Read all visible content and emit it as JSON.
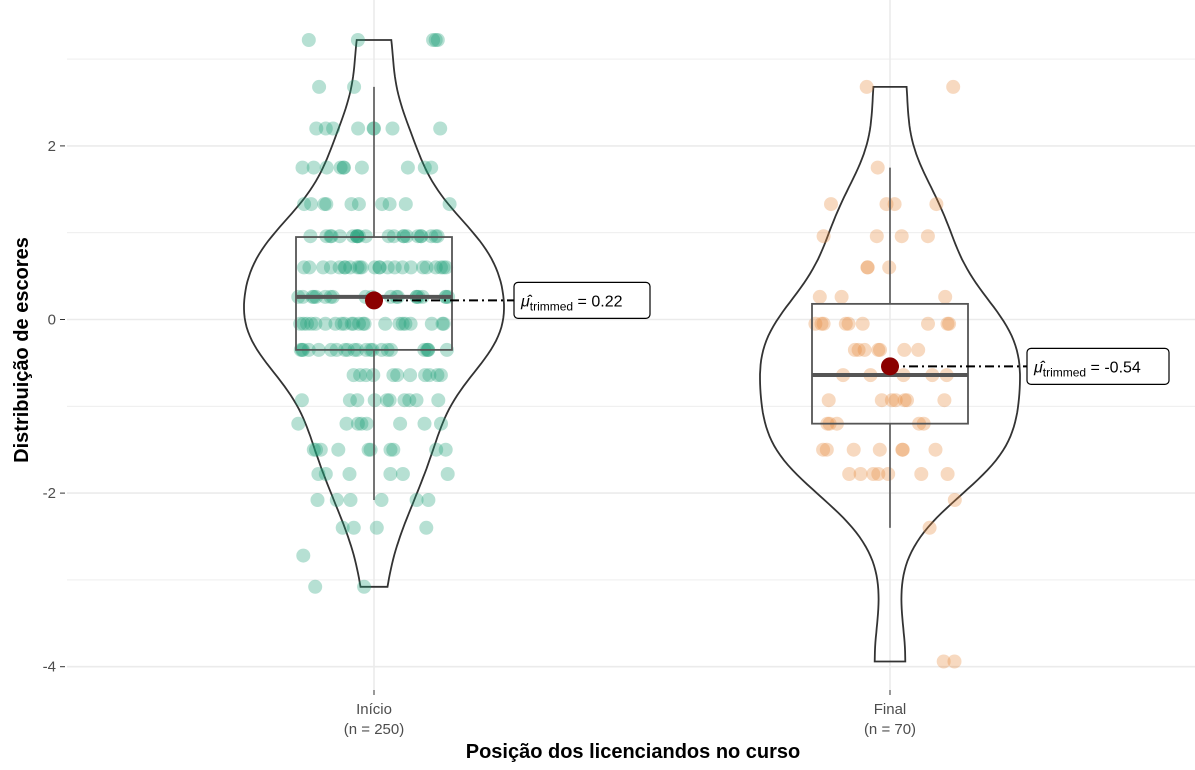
{
  "chart_data": {
    "type": "violin",
    "xlabel": "Posição dos licenciandos no curso",
    "ylabel": "Distribuição de escores",
    "ylim": [
      -4.35,
      3.35
    ],
    "yticks": [
      -4,
      -2,
      0,
      2
    ],
    "yticklabels": [
      "-4",
      "-2",
      "0",
      "2"
    ],
    "grid": true,
    "legend": "none",
    "colors": {
      "inicio": "#1b9e77",
      "final": "#e6893a",
      "mean_point": "#8b0000",
      "outline": "#333333"
    },
    "groups": [
      {
        "key": "inicio",
        "label": "Início",
        "n_label": "(n = 250)",
        "box": {
          "q1": -0.35,
          "median": 0.26,
          "q3": 0.95,
          "whisker_low": -2.08,
          "whisker_high": 2.68
        },
        "trimmed_mean": 0.22,
        "annotation": {
          "symbol": "μ̂",
          "subscript": "trimmed",
          "text": "= 0.22"
        },
        "violin_range": [
          -3.08,
          3.22
        ],
        "points_y": [
          3.22,
          3.22,
          3.22,
          3.22,
          3.22,
          2.68,
          2.68,
          2.2,
          2.2,
          2.2,
          2.2,
          2.2,
          2.2,
          2.2,
          2.2,
          1.75,
          1.75,
          1.75,
          1.75,
          1.75,
          1.75,
          1.75,
          1.75,
          1.75,
          1.75,
          1.33,
          1.33,
          1.33,
          1.33,
          1.33,
          1.33,
          1.33,
          1.33,
          1.33,
          1.33,
          0.96,
          0.96,
          0.96,
          0.96,
          0.96,
          0.96,
          0.96,
          0.96,
          0.96,
          0.96,
          0.96,
          0.96,
          0.96,
          0.96,
          0.96,
          0.96,
          0.96,
          0.96,
          0.96,
          0.96,
          0.96,
          0.96,
          0.6,
          0.6,
          0.6,
          0.6,
          0.6,
          0.6,
          0.6,
          0.6,
          0.6,
          0.6,
          0.6,
          0.6,
          0.6,
          0.6,
          0.6,
          0.6,
          0.6,
          0.6,
          0.6,
          0.6,
          0.6,
          0.6,
          0.6,
          0.6,
          0.26,
          0.26,
          0.26,
          0.26,
          0.26,
          0.26,
          0.26,
          0.26,
          0.26,
          0.26,
          0.26,
          0.26,
          0.26,
          0.26,
          0.26,
          0.26,
          0.26,
          0.26,
          0.26,
          0.26,
          -0.05,
          -0.05,
          -0.05,
          -0.05,
          -0.05,
          -0.05,
          -0.05,
          -0.05,
          -0.05,
          -0.05,
          -0.05,
          -0.05,
          -0.05,
          -0.05,
          -0.05,
          -0.05,
          -0.05,
          -0.05,
          -0.05,
          -0.05,
          -0.05,
          -0.05,
          -0.35,
          -0.35,
          -0.35,
          -0.35,
          -0.35,
          -0.35,
          -0.35,
          -0.35,
          -0.35,
          -0.35,
          -0.35,
          -0.35,
          -0.35,
          -0.35,
          -0.35,
          -0.35,
          -0.35,
          -0.35,
          -0.35,
          -0.35,
          -0.35,
          -0.35,
          -0.64,
          -0.64,
          -0.64,
          -0.64,
          -0.64,
          -0.64,
          -0.64,
          -0.64,
          -0.64,
          -0.64,
          -0.64,
          -0.93,
          -0.93,
          -0.93,
          -0.93,
          -0.93,
          -0.93,
          -0.93,
          -0.93,
          -0.93,
          -0.93,
          -1.2,
          -1.2,
          -1.2,
          -1.2,
          -1.2,
          -1.2,
          -1.2,
          -1.2,
          -1.5,
          -1.5,
          -1.5,
          -1.5,
          -1.5,
          -1.5,
          -1.5,
          -1.5,
          -1.5,
          -1.5,
          -1.78,
          -1.78,
          -1.78,
          -1.78,
          -1.78,
          -1.78,
          -2.08,
          -2.08,
          -2.08,
          -2.08,
          -2.08,
          -2.08,
          -2.4,
          -2.4,
          -2.4,
          -2.4,
          -2.72,
          -3.08,
          -3.08
        ]
      },
      {
        "key": "final",
        "label": "Final",
        "n_label": "(n = 70)",
        "box": {
          "q1": -1.2,
          "median": -0.64,
          "q3": 0.18,
          "whisker_low": -2.4,
          "whisker_high": 1.75
        },
        "trimmed_mean": -0.54,
        "annotation": {
          "symbol": "μ̂",
          "subscript": "trimmed",
          "text": "= -0.54"
        },
        "violin_range": [
          -3.94,
          2.68
        ],
        "points_y": [
          2.68,
          2.68,
          1.75,
          1.33,
          1.33,
          1.33,
          1.33,
          0.96,
          0.96,
          0.96,
          0.96,
          0.6,
          0.6,
          0.6,
          0.26,
          0.26,
          0.26,
          -0.05,
          -0.05,
          -0.05,
          -0.05,
          -0.05,
          -0.05,
          -0.05,
          -0.05,
          -0.05,
          -0.35,
          -0.35,
          -0.35,
          -0.35,
          -0.35,
          -0.35,
          -0.35,
          -0.64,
          -0.64,
          -0.64,
          -0.64,
          -0.64,
          -0.93,
          -0.93,
          -0.93,
          -0.93,
          -0.93,
          -0.93,
          -0.93,
          -1.2,
          -1.2,
          -1.2,
          -1.2,
          -1.2,
          -1.5,
          -1.5,
          -1.5,
          -1.5,
          -1.5,
          -1.5,
          -1.5,
          -1.78,
          -1.78,
          -1.78,
          -1.78,
          -1.78,
          -1.78,
          -1.78,
          -2.08,
          -2.4,
          -3.94,
          -3.94
        ]
      }
    ]
  }
}
